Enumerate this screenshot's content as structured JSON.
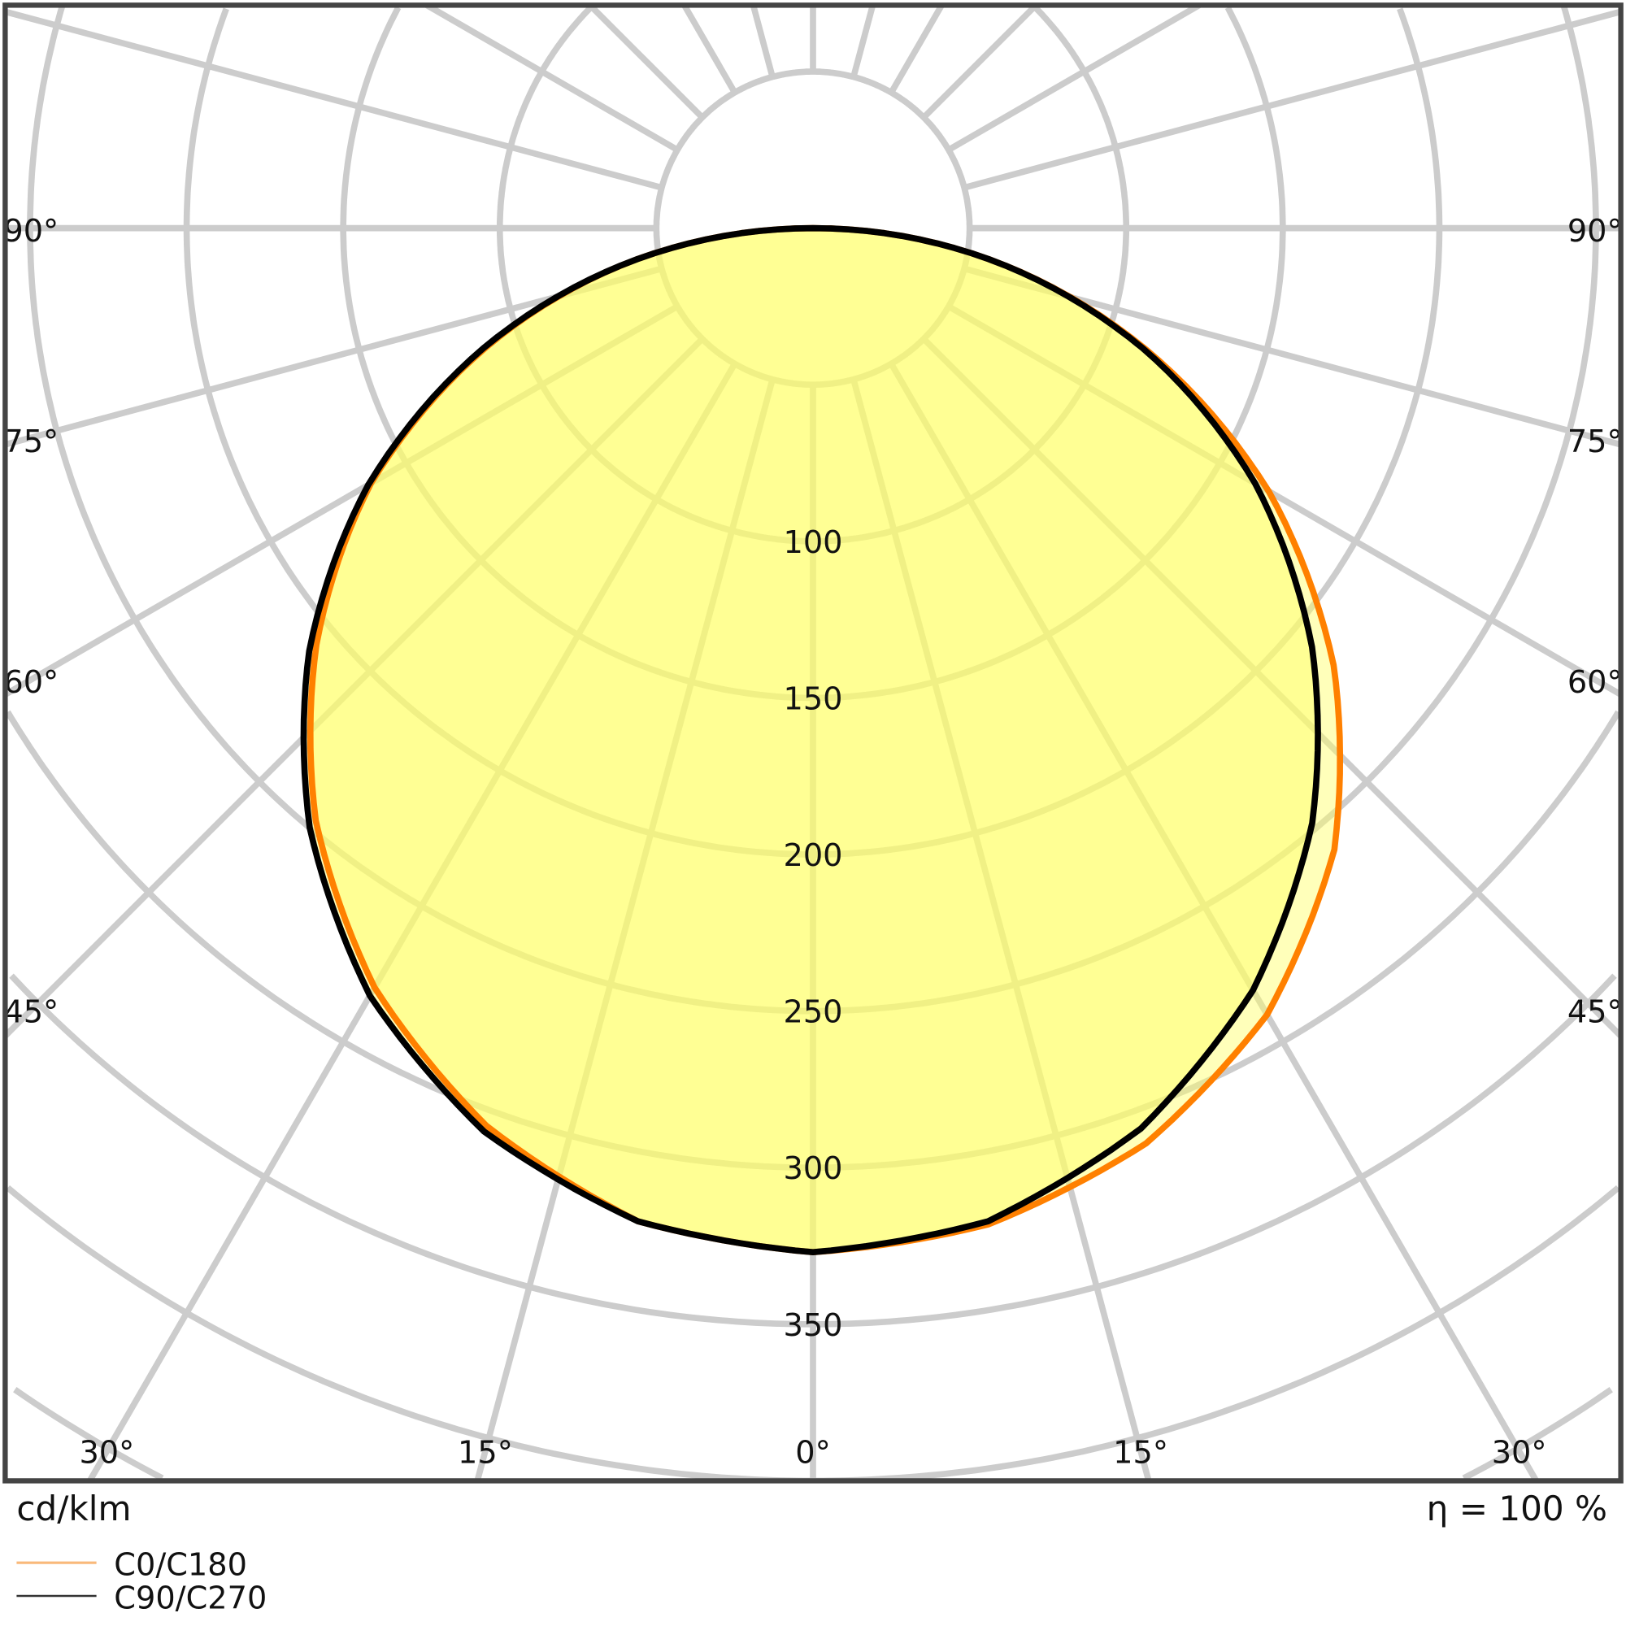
{
  "chart_data": {
    "type": "polar",
    "unit_label": "cd/klm",
    "efficiency_label": "η = 100 %",
    "radial_ticks": [
      100,
      150,
      200,
      250,
      300,
      350
    ],
    "radial_grid_step": 50,
    "angle_labels_left": [
      "90°",
      "75°",
      "60°",
      "45°"
    ],
    "angle_labels_bottom": [
      "30°",
      "15°",
      "0°",
      "15°",
      "30°"
    ],
    "angle_labels_right": [
      "90°",
      "75°",
      "60°",
      "45°"
    ],
    "angular_grid_step_deg": 15,
    "grid": true,
    "legend_position": "bottom-left",
    "angles_deg": [
      0,
      10,
      20,
      30,
      40,
      50,
      60,
      70,
      80,
      90
    ],
    "series": [
      {
        "name": "C0/C180",
        "color": "#ff8000",
        "legend_color": "#f9b97a",
        "right_C0": [
          327,
          323,
          311,
          290,
          259,
          217,
          168,
          113,
          57,
          0
        ],
        "left_C180": [
          327,
          322,
          305,
          280,
          247,
          207,
          163,
          111,
          57,
          0
        ]
      },
      {
        "name": "C90/C270",
        "color": "#000000",
        "legend_color": "#333333",
        "right_C90": [
          327,
          322,
          306,
          281,
          248,
          208,
          163,
          112,
          57,
          0
        ],
        "left_C270": [
          327,
          322,
          307,
          283,
          250,
          210,
          164,
          112,
          57,
          0
        ]
      }
    ],
    "fill_color": "#ffff66",
    "grid_color": "#cccccc",
    "frame_color": "#444444"
  }
}
